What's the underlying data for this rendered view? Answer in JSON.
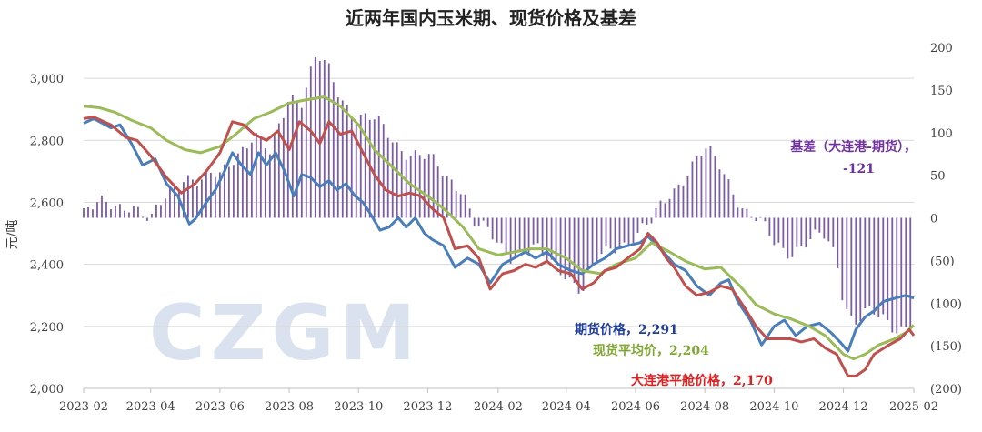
{
  "chart_data": {
    "type": "line+bar",
    "title": "近两年国内玉米期、现货价格及基差",
    "ylabel": "元/吨",
    "watermark": "CZGM",
    "x_ticks": [
      "2023-02",
      "2023-04",
      "2023-06",
      "2023-08",
      "2023-10",
      "2023-12",
      "2024-02",
      "2024-04",
      "2024-06",
      "2024-08",
      "2024-10",
      "2024-12",
      "2025-02"
    ],
    "y_left_ticks": [
      "2,000",
      "2,200",
      "2,400",
      "2,600",
      "2,800",
      "3,000"
    ],
    "y_left_range": [
      2000,
      3100
    ],
    "y_right_ticks": [
      "(200)",
      "(150)",
      "(100)",
      "(50)",
      "0",
      "50",
      "100",
      "150",
      "200"
    ],
    "y_right_range": [
      -200,
      200
    ],
    "x_range": [
      "2023-02-01",
      "2025-02-01"
    ],
    "colors": {
      "futures": "#4a7ebb",
      "spot": "#9bbb59",
      "port": "#c0504d",
      "basis": "#7b5aa6",
      "basis_label": "#7030a0",
      "futures_label": "#1f3d99",
      "spot_label": "#7fa832",
      "port_label": "#e02020",
      "negative_tick": "#c00000"
    },
    "annotations": {
      "basis_line1": "基差（大连港-期货），",
      "basis_line2": "-121",
      "futures": "期货价格，2,291",
      "spot": "现货平均价，2,204",
      "port": "大连港平舱价格，2,170"
    },
    "series": [
      {
        "name": "期货价格",
        "axis": "left",
        "points": [
          [
            "2023-02-01",
            2855
          ],
          [
            "2023-02-10",
            2870
          ],
          [
            "2023-02-25",
            2840
          ],
          [
            "2023-03-05",
            2850
          ],
          [
            "2023-03-15",
            2790
          ],
          [
            "2023-03-25",
            2720
          ],
          [
            "2023-04-05",
            2740
          ],
          [
            "2023-04-15",
            2660
          ],
          [
            "2023-04-25",
            2620
          ],
          [
            "2023-05-05",
            2530
          ],
          [
            "2023-05-10",
            2545
          ],
          [
            "2023-05-20",
            2600
          ],
          [
            "2023-05-28",
            2640
          ],
          [
            "2023-06-05",
            2700
          ],
          [
            "2023-06-12",
            2760
          ],
          [
            "2023-06-20",
            2720
          ],
          [
            "2023-06-28",
            2690
          ],
          [
            "2023-07-05",
            2760
          ],
          [
            "2023-07-12",
            2720
          ],
          [
            "2023-07-20",
            2760
          ],
          [
            "2023-07-28",
            2700
          ],
          [
            "2023-08-05",
            2620
          ],
          [
            "2023-08-12",
            2690
          ],
          [
            "2023-08-20",
            2680
          ],
          [
            "2023-08-28",
            2650
          ],
          [
            "2023-09-05",
            2670
          ],
          [
            "2023-09-12",
            2640
          ],
          [
            "2023-09-20",
            2660
          ],
          [
            "2023-09-28",
            2620
          ],
          [
            "2023-10-05",
            2600
          ],
          [
            "2023-10-12",
            2560
          ],
          [
            "2023-10-20",
            2510
          ],
          [
            "2023-10-28",
            2520
          ],
          [
            "2023-11-05",
            2550
          ],
          [
            "2023-11-12",
            2520
          ],
          [
            "2023-11-20",
            2550
          ],
          [
            "2023-11-28",
            2500
          ],
          [
            "2023-12-05",
            2480
          ],
          [
            "2023-12-15",
            2460
          ],
          [
            "2023-12-25",
            2390
          ],
          [
            "2024-01-05",
            2420
          ],
          [
            "2024-01-15",
            2400
          ],
          [
            "2024-01-25",
            2340
          ],
          [
            "2024-02-05",
            2400
          ],
          [
            "2024-02-15",
            2420
          ],
          [
            "2024-02-25",
            2440
          ],
          [
            "2024-03-05",
            2420
          ],
          [
            "2024-03-15",
            2440
          ],
          [
            "2024-03-25",
            2400
          ],
          [
            "2024-04-05",
            2380
          ],
          [
            "2024-04-15",
            2370
          ],
          [
            "2024-04-25",
            2400
          ],
          [
            "2024-05-05",
            2420
          ],
          [
            "2024-05-15",
            2450
          ],
          [
            "2024-05-25",
            2460
          ],
          [
            "2024-06-05",
            2470
          ],
          [
            "2024-06-12",
            2490
          ],
          [
            "2024-06-20",
            2460
          ],
          [
            "2024-06-28",
            2430
          ],
          [
            "2024-07-05",
            2400
          ],
          [
            "2024-07-15",
            2380
          ],
          [
            "2024-07-25",
            2330
          ],
          [
            "2024-08-05",
            2300
          ],
          [
            "2024-08-15",
            2340
          ],
          [
            "2024-08-22",
            2350
          ],
          [
            "2024-08-30",
            2280
          ],
          [
            "2024-09-10",
            2220
          ],
          [
            "2024-09-20",
            2140
          ],
          [
            "2024-10-01",
            2200
          ],
          [
            "2024-10-10",
            2220
          ],
          [
            "2024-10-20",
            2170
          ],
          [
            "2024-10-30",
            2200
          ],
          [
            "2024-11-10",
            2210
          ],
          [
            "2024-11-20",
            2180
          ],
          [
            "2024-11-28",
            2150
          ],
          [
            "2024-12-05",
            2120
          ],
          [
            "2024-12-12",
            2190
          ],
          [
            "2024-12-20",
            2230
          ],
          [
            "2024-12-28",
            2250
          ],
          [
            "2025-01-05",
            2280
          ],
          [
            "2025-01-15",
            2290
          ],
          [
            "2025-01-25",
            2300
          ],
          [
            "2025-02-01",
            2291
          ]
        ]
      },
      {
        "name": "现货平均价",
        "axis": "left",
        "points": [
          [
            "2023-02-01",
            2910
          ],
          [
            "2023-02-15",
            2905
          ],
          [
            "2023-03-01",
            2890
          ],
          [
            "2023-03-15",
            2865
          ],
          [
            "2023-04-01",
            2840
          ],
          [
            "2023-04-15",
            2800
          ],
          [
            "2023-05-01",
            2770
          ],
          [
            "2023-05-15",
            2760
          ],
          [
            "2023-06-01",
            2780
          ],
          [
            "2023-06-15",
            2820
          ],
          [
            "2023-07-01",
            2870
          ],
          [
            "2023-07-15",
            2890
          ],
          [
            "2023-08-01",
            2920
          ],
          [
            "2023-08-15",
            2930
          ],
          [
            "2023-09-01",
            2940
          ],
          [
            "2023-09-15",
            2910
          ],
          [
            "2023-10-01",
            2850
          ],
          [
            "2023-10-15",
            2770
          ],
          [
            "2023-11-01",
            2710
          ],
          [
            "2023-11-15",
            2660
          ],
          [
            "2023-12-01",
            2620
          ],
          [
            "2023-12-15",
            2580
          ],
          [
            "2024-01-01",
            2520
          ],
          [
            "2024-01-15",
            2450
          ],
          [
            "2024-02-01",
            2430
          ],
          [
            "2024-02-15",
            2440
          ],
          [
            "2024-03-01",
            2450
          ],
          [
            "2024-03-15",
            2450
          ],
          [
            "2024-04-01",
            2420
          ],
          [
            "2024-04-15",
            2380
          ],
          [
            "2024-05-01",
            2370
          ],
          [
            "2024-05-15",
            2400
          ],
          [
            "2024-06-01",
            2420
          ],
          [
            "2024-06-15",
            2470
          ],
          [
            "2024-07-01",
            2440
          ],
          [
            "2024-07-15",
            2410
          ],
          [
            "2024-08-01",
            2385
          ],
          [
            "2024-08-15",
            2390
          ],
          [
            "2024-09-01",
            2330
          ],
          [
            "2024-09-15",
            2270
          ],
          [
            "2024-10-01",
            2240
          ],
          [
            "2024-10-15",
            2225
          ],
          [
            "2024-11-01",
            2200
          ],
          [
            "2024-11-15",
            2170
          ],
          [
            "2024-12-01",
            2110
          ],
          [
            "2024-12-10",
            2095
          ],
          [
            "2024-12-20",
            2110
          ],
          [
            "2025-01-01",
            2140
          ],
          [
            "2025-01-15",
            2160
          ],
          [
            "2025-01-25",
            2180
          ],
          [
            "2025-02-01",
            2204
          ]
        ]
      },
      {
        "name": "大连港平舱价格",
        "axis": "left",
        "points": [
          [
            "2023-02-01",
            2870
          ],
          [
            "2023-02-10",
            2875
          ],
          [
            "2023-02-25",
            2850
          ],
          [
            "2023-03-10",
            2810
          ],
          [
            "2023-03-20",
            2800
          ],
          [
            "2023-04-01",
            2750
          ],
          [
            "2023-04-15",
            2680
          ],
          [
            "2023-04-28",
            2630
          ],
          [
            "2023-05-10",
            2660
          ],
          [
            "2023-05-20",
            2700
          ],
          [
            "2023-06-01",
            2760
          ],
          [
            "2023-06-12",
            2860
          ],
          [
            "2023-06-22",
            2850
          ],
          [
            "2023-07-01",
            2820
          ],
          [
            "2023-07-12",
            2800
          ],
          [
            "2023-07-22",
            2830
          ],
          [
            "2023-08-01",
            2770
          ],
          [
            "2023-08-10",
            2860
          ],
          [
            "2023-08-20",
            2830
          ],
          [
            "2023-08-28",
            2790
          ],
          [
            "2023-09-05",
            2860
          ],
          [
            "2023-09-15",
            2820
          ],
          [
            "2023-09-25",
            2830
          ],
          [
            "2023-10-05",
            2760
          ],
          [
            "2023-10-15",
            2690
          ],
          [
            "2023-10-25",
            2640
          ],
          [
            "2023-11-05",
            2620
          ],
          [
            "2023-11-15",
            2630
          ],
          [
            "2023-11-25",
            2620
          ],
          [
            "2023-12-05",
            2580
          ],
          [
            "2023-12-15",
            2550
          ],
          [
            "2023-12-25",
            2450
          ],
          [
            "2024-01-05",
            2460
          ],
          [
            "2024-01-15",
            2420
          ],
          [
            "2024-01-25",
            2320
          ],
          [
            "2024-02-05",
            2370
          ],
          [
            "2024-02-15",
            2380
          ],
          [
            "2024-02-25",
            2400
          ],
          [
            "2024-03-05",
            2390
          ],
          [
            "2024-03-15",
            2410
          ],
          [
            "2024-03-25",
            2380
          ],
          [
            "2024-04-05",
            2370
          ],
          [
            "2024-04-15",
            2320
          ],
          [
            "2024-04-25",
            2340
          ],
          [
            "2024-05-05",
            2380
          ],
          [
            "2024-05-15",
            2390
          ],
          [
            "2024-05-25",
            2420
          ],
          [
            "2024-06-05",
            2450
          ],
          [
            "2024-06-12",
            2500
          ],
          [
            "2024-06-20",
            2470
          ],
          [
            "2024-06-28",
            2420
          ],
          [
            "2024-07-05",
            2390
          ],
          [
            "2024-07-15",
            2330
          ],
          [
            "2024-07-25",
            2300
          ],
          [
            "2024-08-05",
            2310
          ],
          [
            "2024-08-15",
            2330
          ],
          [
            "2024-08-25",
            2320
          ],
          [
            "2024-09-05",
            2260
          ],
          [
            "2024-09-15",
            2200
          ],
          [
            "2024-09-25",
            2160
          ],
          [
            "2024-10-05",
            2160
          ],
          [
            "2024-10-15",
            2160
          ],
          [
            "2024-10-25",
            2150
          ],
          [
            "2024-11-05",
            2160
          ],
          [
            "2024-11-15",
            2130
          ],
          [
            "2024-11-25",
            2110
          ],
          [
            "2024-12-05",
            2040
          ],
          [
            "2024-12-12",
            2040
          ],
          [
            "2024-12-20",
            2060
          ],
          [
            "2024-12-28",
            2110
          ],
          [
            "2025-01-10",
            2140
          ],
          [
            "2025-01-20",
            2160
          ],
          [
            "2025-01-28",
            2190
          ],
          [
            "2025-02-01",
            2170
          ]
        ]
      },
      {
        "name": "基差（大连港-期货）",
        "axis": "right",
        "type": "bar",
        "points": [
          [
            "2023-02-01",
            8
          ],
          [
            "2023-03-01",
            14
          ],
          [
            "2023-03-15",
            22
          ],
          [
            "2023-04-01",
            -10
          ],
          [
            "2023-04-15",
            25
          ],
          [
            "2023-05-01",
            55
          ],
          [
            "2023-05-15",
            40
          ],
          [
            "2023-06-01",
            48
          ],
          [
            "2023-06-15",
            80
          ],
          [
            "2023-07-01",
            95
          ],
          [
            "2023-07-15",
            70
          ],
          [
            "2023-08-01",
            150
          ],
          [
            "2023-08-12",
            140
          ],
          [
            "2023-08-25",
            185
          ],
          [
            "2023-09-05",
            170
          ],
          [
            "2023-09-15",
            145
          ],
          [
            "2023-10-01",
            120
          ],
          [
            "2023-10-15",
            110
          ],
          [
            "2023-11-01",
            92
          ],
          [
            "2023-11-15",
            80
          ],
          [
            "2023-12-01",
            66
          ],
          [
            "2023-12-15",
            50
          ],
          [
            "2024-01-01",
            40
          ],
          [
            "2024-01-10",
            -5
          ],
          [
            "2024-01-25",
            -25
          ],
          [
            "2024-02-10",
            -40
          ],
          [
            "2024-03-01",
            -35
          ],
          [
            "2024-03-15",
            -55
          ],
          [
            "2024-04-01",
            -60
          ],
          [
            "2024-04-15",
            -85
          ],
          [
            "2024-05-01",
            -50
          ],
          [
            "2024-05-15",
            -30
          ],
          [
            "2024-06-01",
            -20
          ],
          [
            "2024-06-15",
            -10
          ],
          [
            "2024-07-01",
            30
          ],
          [
            "2024-07-15",
            55
          ],
          [
            "2024-08-01",
            75
          ],
          [
            "2024-08-15",
            60
          ],
          [
            "2024-08-25",
            40
          ],
          [
            "2024-09-05",
            10
          ],
          [
            "2024-09-15",
            -5
          ],
          [
            "2024-10-01",
            -30
          ],
          [
            "2024-10-15",
            -35
          ],
          [
            "2024-11-01",
            -30
          ],
          [
            "2024-11-15",
            -25
          ],
          [
            "2024-11-25",
            -45
          ],
          [
            "2024-12-01",
            -90
          ],
          [
            "2024-12-10",
            -120
          ],
          [
            "2024-12-20",
            -115
          ],
          [
            "2025-01-01",
            -120
          ],
          [
            "2025-01-15",
            -125
          ],
          [
            "2025-02-01",
            -121
          ]
        ]
      }
    ]
  }
}
